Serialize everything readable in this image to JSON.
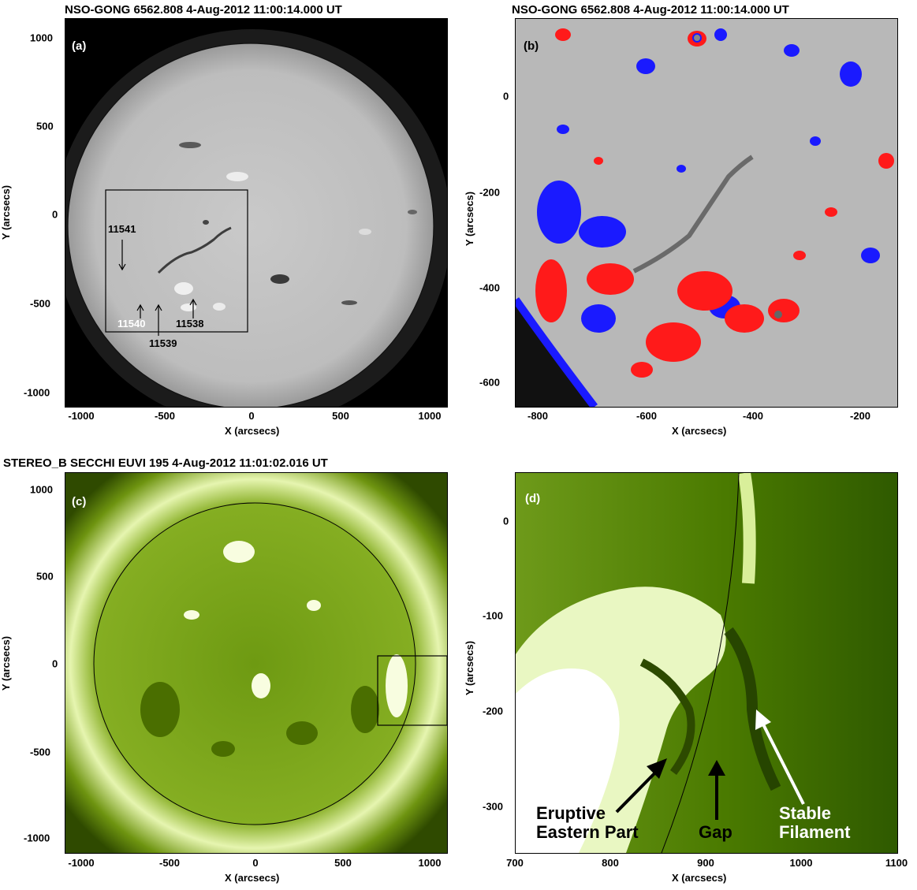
{
  "panel_a": {
    "title": "NSO-GONG 6562.808  4-Aug-2012 11:00:14.000 UT",
    "label": "(a)",
    "x_ticks": [
      "-1000",
      "-500",
      "0",
      "500",
      "1000"
    ],
    "y_ticks": [
      "1000",
      "500",
      "0",
      "-500",
      "-1000"
    ],
    "xlabel": "X (arcsecs)",
    "ylabel": "Y (arcsecs)",
    "annotations": [
      "11541",
      "11540",
      "11539",
      "11538"
    ]
  },
  "panel_b": {
    "title": "NSO-GONG 6562.808  4-Aug-2012 11:00:14.000 UT",
    "label": "(b)",
    "x_ticks": [
      "-800",
      "-600",
      "-400",
      "-200"
    ],
    "y_ticks": [
      "0",
      "-200",
      "-400",
      "-600"
    ],
    "xlabel": "X (arcsecs)",
    "ylabel": "Y (arcsecs)"
  },
  "panel_c": {
    "title": "STEREO_B SECCHI EUVI 195  4-Aug-2012 11:01:02.016 UT",
    "label": "(c)",
    "x_ticks": [
      "-1000",
      "-500",
      "0",
      "500",
      "1000"
    ],
    "y_ticks": [
      "1000",
      "500",
      "0",
      "-500",
      "-1000"
    ],
    "xlabel": "X (arcsecs)",
    "ylabel": "Y (arcsecs)"
  },
  "panel_d": {
    "label": "(d)",
    "x_ticks": [
      "700",
      "800",
      "900",
      "1000",
      "1100"
    ],
    "y_ticks": [
      "0",
      "-100",
      "-200",
      "-300"
    ],
    "xlabel": "X (arcsecs)",
    "ylabel": "Y (arcsecs)",
    "annotation_eruptive_1": "Eruptive",
    "annotation_eruptive_2": "Eastern Part",
    "annotation_gap": "Gap",
    "annotation_stable_1": "Stable",
    "annotation_stable_2": "Filament"
  },
  "colors": {
    "positive_polarity": "#ff1a1a",
    "negative_polarity": "#1a1aff",
    "euv_green": "#5a8a00"
  }
}
